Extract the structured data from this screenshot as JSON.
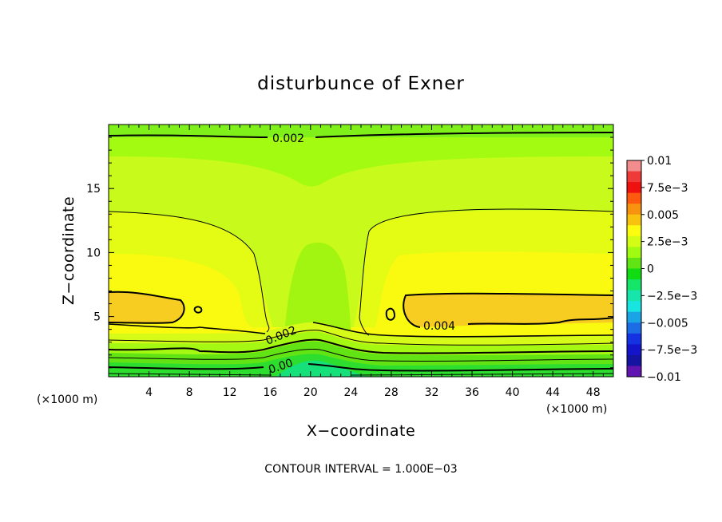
{
  "chart_data": {
    "type": "heatmap",
    "title": "disturbunce of Exner",
    "xlabel": "X−coordinate",
    "ylabel": "Z−coordinate",
    "x_unit": "(×1000 m)",
    "footnote": "CONTOUR INTERVAL = 1.000E−03",
    "xlim": [
      0,
      50
    ],
    "ylim": [
      0.3,
      20
    ],
    "xticks": [
      4,
      8,
      12,
      16,
      20,
      24,
      28,
      32,
      36,
      40,
      44,
      48
    ],
    "yticks": [
      5,
      10,
      15
    ],
    "colorbar": {
      "labels": [
        "0.01",
        "7.5e−3",
        "0.005",
        "2.5e−3",
        "0",
        "−2.5e−3",
        "−0.005",
        "−7.5e−3",
        "−0.01"
      ],
      "min": -0.01,
      "max": 0.01,
      "colors": [
        "#f38c8c",
        "#ef3a3a",
        "#ef1010",
        "#fd5a10",
        "#f7930f",
        "#f7c30f",
        "#fcfc10",
        "#d3fd15",
        "#a0fb10",
        "#60e413",
        "#11dc11",
        "#15e568",
        "#17e5ab",
        "#18e5e0",
        "#1aa3e5",
        "#1b6ce5",
        "#1431e2",
        "#1414cb",
        "#1414a0",
        "#6015b0"
      ]
    },
    "contour_labels": [
      "0.002",
      "0.002",
      "0.004",
      "0.00"
    ]
  }
}
